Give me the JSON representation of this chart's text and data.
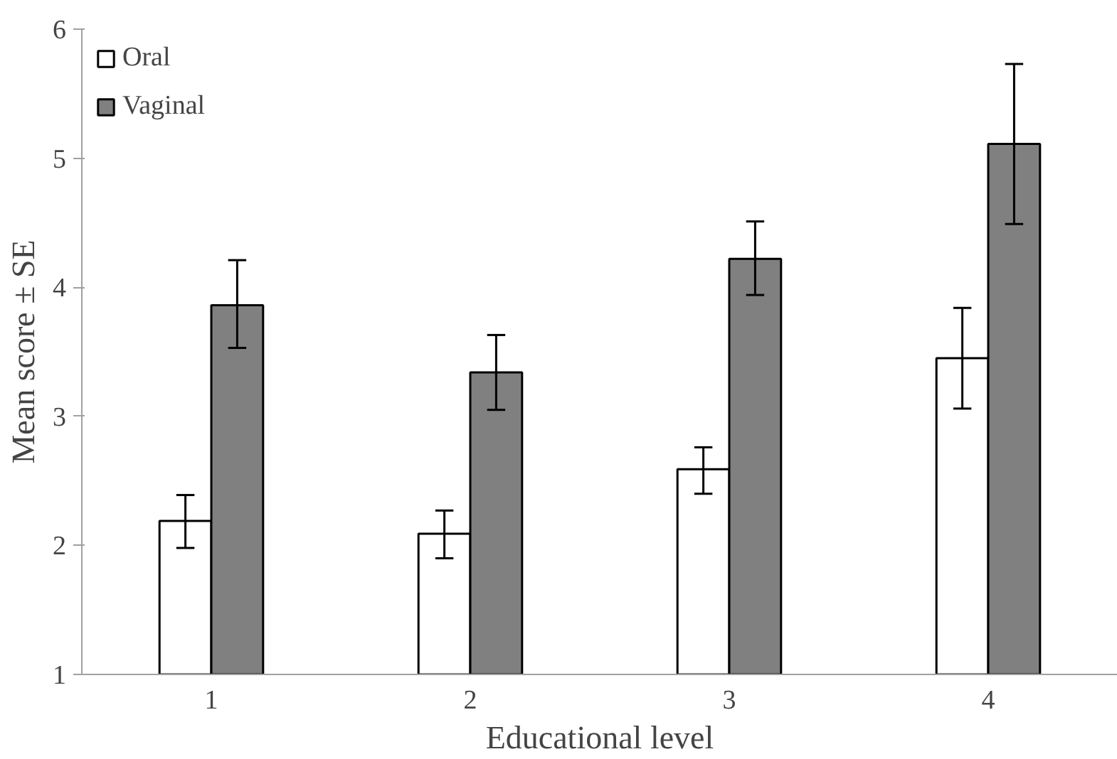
{
  "chart_data": {
    "type": "bar",
    "xlabel": "Educational level",
    "ylabel": "Mean score ± SE",
    "categories": [
      "1",
      "2",
      "3",
      "4"
    ],
    "series": [
      {
        "name": "Oral",
        "color": "#ffffff",
        "values": [
          2.19,
          2.09,
          2.59,
          3.45
        ],
        "errors": [
          [
            1.98,
            2.39
          ],
          [
            1.9,
            2.27
          ],
          [
            2.4,
            2.76
          ],
          [
            3.06,
            3.84
          ]
        ]
      },
      {
        "name": "Vaginal",
        "color": "#808080",
        "values": [
          3.86,
          3.34,
          4.22,
          5.11
        ],
        "errors": [
          [
            3.53,
            4.21
          ],
          [
            3.05,
            3.63
          ],
          [
            3.94,
            4.51
          ],
          [
            4.49,
            5.73
          ]
        ]
      }
    ],
    "ylim": [
      1,
      6
    ],
    "yticks": [
      1,
      2,
      3,
      4,
      5,
      6
    ],
    "grid": false,
    "legend": "top left"
  }
}
